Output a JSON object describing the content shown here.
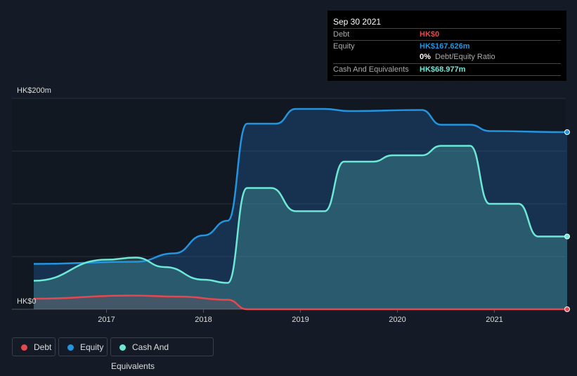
{
  "tooltip": {
    "date": "Sep 30 2021",
    "debt_label": "Debt",
    "debt_value": "HK$0",
    "equity_label": "Equity",
    "equity_value": "HK$167.626m",
    "ratio_value": "0%",
    "ratio_label": "Debt/Equity Ratio",
    "cash_label": "Cash And Equivalents",
    "cash_value": "HK$68.977m"
  },
  "colors": {
    "debt": "#e64850",
    "equity": "#2394df",
    "cash": "#6ee8d6"
  },
  "chart_data": {
    "type": "area",
    "ylabel": "",
    "xlabel": "",
    "y_tick_labels": [
      "HK$0",
      "HK$200m"
    ],
    "ylim": [
      0,
      200
    ],
    "x_ticks": [
      2017,
      2018,
      2019,
      2020,
      2021
    ],
    "x_tick_labels": [
      "2017",
      "2018",
      "2019",
      "2020",
      "2021"
    ],
    "xlim": [
      2016.25,
      2021.75
    ],
    "legend": [
      "Debt",
      "Equity",
      "Cash And Equivalents"
    ],
    "legend_position": "bottom-left",
    "series": [
      {
        "name": "Equity",
        "points": [
          [
            2016.25,
            43
          ],
          [
            2017.3,
            45
          ],
          [
            2017.7,
            53
          ],
          [
            2018.0,
            70
          ],
          [
            2018.25,
            84
          ],
          [
            2018.45,
            176
          ],
          [
            2018.75,
            176
          ],
          [
            2018.95,
            190
          ],
          [
            2019.25,
            190
          ],
          [
            2019.5,
            188
          ],
          [
            2020.25,
            189
          ],
          [
            2020.45,
            175
          ],
          [
            2020.75,
            175
          ],
          [
            2020.95,
            169
          ],
          [
            2021.75,
            168
          ]
        ]
      },
      {
        "name": "Cash And Equivalents",
        "points": [
          [
            2016.25,
            27
          ],
          [
            2017.0,
            47
          ],
          [
            2017.3,
            49
          ],
          [
            2017.6,
            40
          ],
          [
            2018.0,
            28
          ],
          [
            2018.25,
            25
          ],
          [
            2018.45,
            115
          ],
          [
            2018.7,
            115
          ],
          [
            2018.95,
            93
          ],
          [
            2019.25,
            93
          ],
          [
            2019.45,
            140
          ],
          [
            2019.75,
            140
          ],
          [
            2019.95,
            146
          ],
          [
            2020.25,
            146
          ],
          [
            2020.45,
            155
          ],
          [
            2020.75,
            155
          ],
          [
            2020.95,
            100
          ],
          [
            2021.25,
            100
          ],
          [
            2021.45,
            69
          ],
          [
            2021.75,
            69
          ]
        ]
      },
      {
        "name": "Debt",
        "points": [
          [
            2016.25,
            10
          ],
          [
            2017.25,
            13
          ],
          [
            2017.75,
            12
          ],
          [
            2018.25,
            9
          ],
          [
            2018.45,
            0
          ],
          [
            2021.75,
            0
          ]
        ]
      }
    ]
  }
}
